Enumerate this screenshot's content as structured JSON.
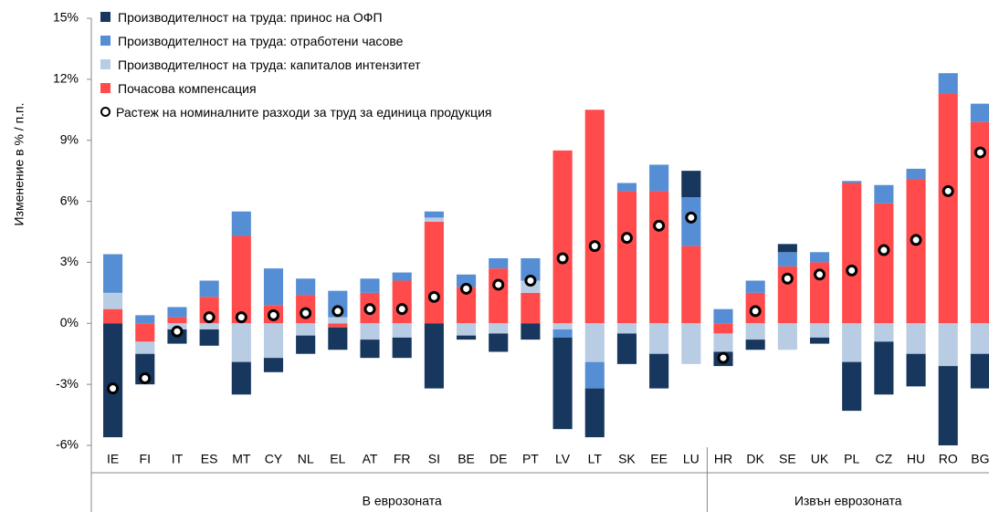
{
  "chart_data": {
    "type": "stacked-bar",
    "y_label": "Изменение в % / п.п.",
    "categories": [
      "IE",
      "FI",
      "IT",
      "ES",
      "MT",
      "CY",
      "NL",
      "EL",
      "AT",
      "FR",
      "SI",
      "BE",
      "DE",
      "PT",
      "LV",
      "LT",
      "SK",
      "EE",
      "LU",
      "HR",
      "DK",
      "SE",
      "UK",
      "PL",
      "CZ",
      "HU",
      "RO",
      "BG"
    ],
    "groups": [
      {
        "label": "В еврозоната",
        "size": 19
      },
      {
        "label": "Извън еврозоната",
        "size": 9
      }
    ],
    "ylim": [
      -6,
      15
    ],
    "yticks": [
      {
        "value": -6,
        "label": "-6%"
      },
      {
        "value": -3,
        "label": "-3%"
      },
      {
        "value": 0,
        "label": "0%"
      },
      {
        "value": 3,
        "label": "3%"
      },
      {
        "value": 6,
        "label": "6%"
      },
      {
        "value": 9,
        "label": "9%"
      },
      {
        "value": 12,
        "label": "12%"
      },
      {
        "value": 15,
        "label": "15%"
      }
    ],
    "series": [
      {
        "name": "Почасова компенсация",
        "color": "#ff4b4b",
        "values": [
          0.7,
          -0.9,
          0.3,
          1.3,
          4.3,
          0.9,
          1.4,
          -0.2,
          1.5,
          2.1,
          5.0,
          1.8,
          2.7,
          1.5,
          8.5,
          10.5,
          6.5,
          6.5,
          3.8,
          -0.5,
          1.5,
          2.8,
          3.0,
          6.9,
          5.9,
          7.1,
          11.3,
          9.9
        ]
      },
      {
        "name": "Производителност на труда: капиталов интензитет",
        "color": "#b8cce4",
        "values": [
          0.8,
          -0.6,
          -0.3,
          -0.3,
          -1.9,
          -1.7,
          -0.6,
          0.3,
          -0.8,
          -0.7,
          0.2,
          -0.6,
          -0.5,
          0.6,
          -0.3,
          -1.9,
          -0.5,
          -1.5,
          -2.0,
          -0.9,
          -0.8,
          -1.3,
          -0.7,
          -1.9,
          -0.9,
          -1.5,
          -2.1,
          -1.5
        ]
      },
      {
        "name": "Производителност на труда: отработени часове",
        "color": "#558ed5",
        "values": [
          1.9,
          0.4,
          0.5,
          0.8,
          1.2,
          1.8,
          0.8,
          1.3,
          0.7,
          0.4,
          0.3,
          0.6,
          0.5,
          1.1,
          -0.4,
          -1.3,
          0.4,
          1.3,
          2.4,
          0.7,
          0.6,
          0.7,
          0.5,
          0.1,
          0.9,
          0.5,
          1.0,
          0.9
        ]
      },
      {
        "name": "Производителност на труда: принос на ОФП",
        "color": "#17375e",
        "values": [
          -5.6,
          -1.5,
          -0.7,
          -0.8,
          -1.6,
          -0.7,
          -0.9,
          -1.1,
          -0.9,
          -1.0,
          -3.2,
          -0.2,
          -0.9,
          -0.8,
          -4.5,
          -2.4,
          -1.5,
          -1.7,
          1.3,
          -0.7,
          -0.5,
          0.4,
          -0.3,
          -2.4,
          -2.6,
          -1.6,
          -3.9,
          -1.7
        ]
      }
    ],
    "dots": {
      "name": "Растеж на номиналните разходи за труд за единица продукция",
      "values": [
        -3.2,
        -2.7,
        -0.4,
        0.3,
        0.3,
        0.4,
        0.5,
        0.6,
        0.7,
        0.7,
        1.3,
        1.7,
        1.9,
        2.1,
        3.2,
        3.8,
        4.2,
        4.8,
        5.2,
        -1.7,
        0.6,
        2.2,
        2.4,
        2.6,
        3.6,
        4.1,
        6.5,
        8.4
      ]
    }
  }
}
